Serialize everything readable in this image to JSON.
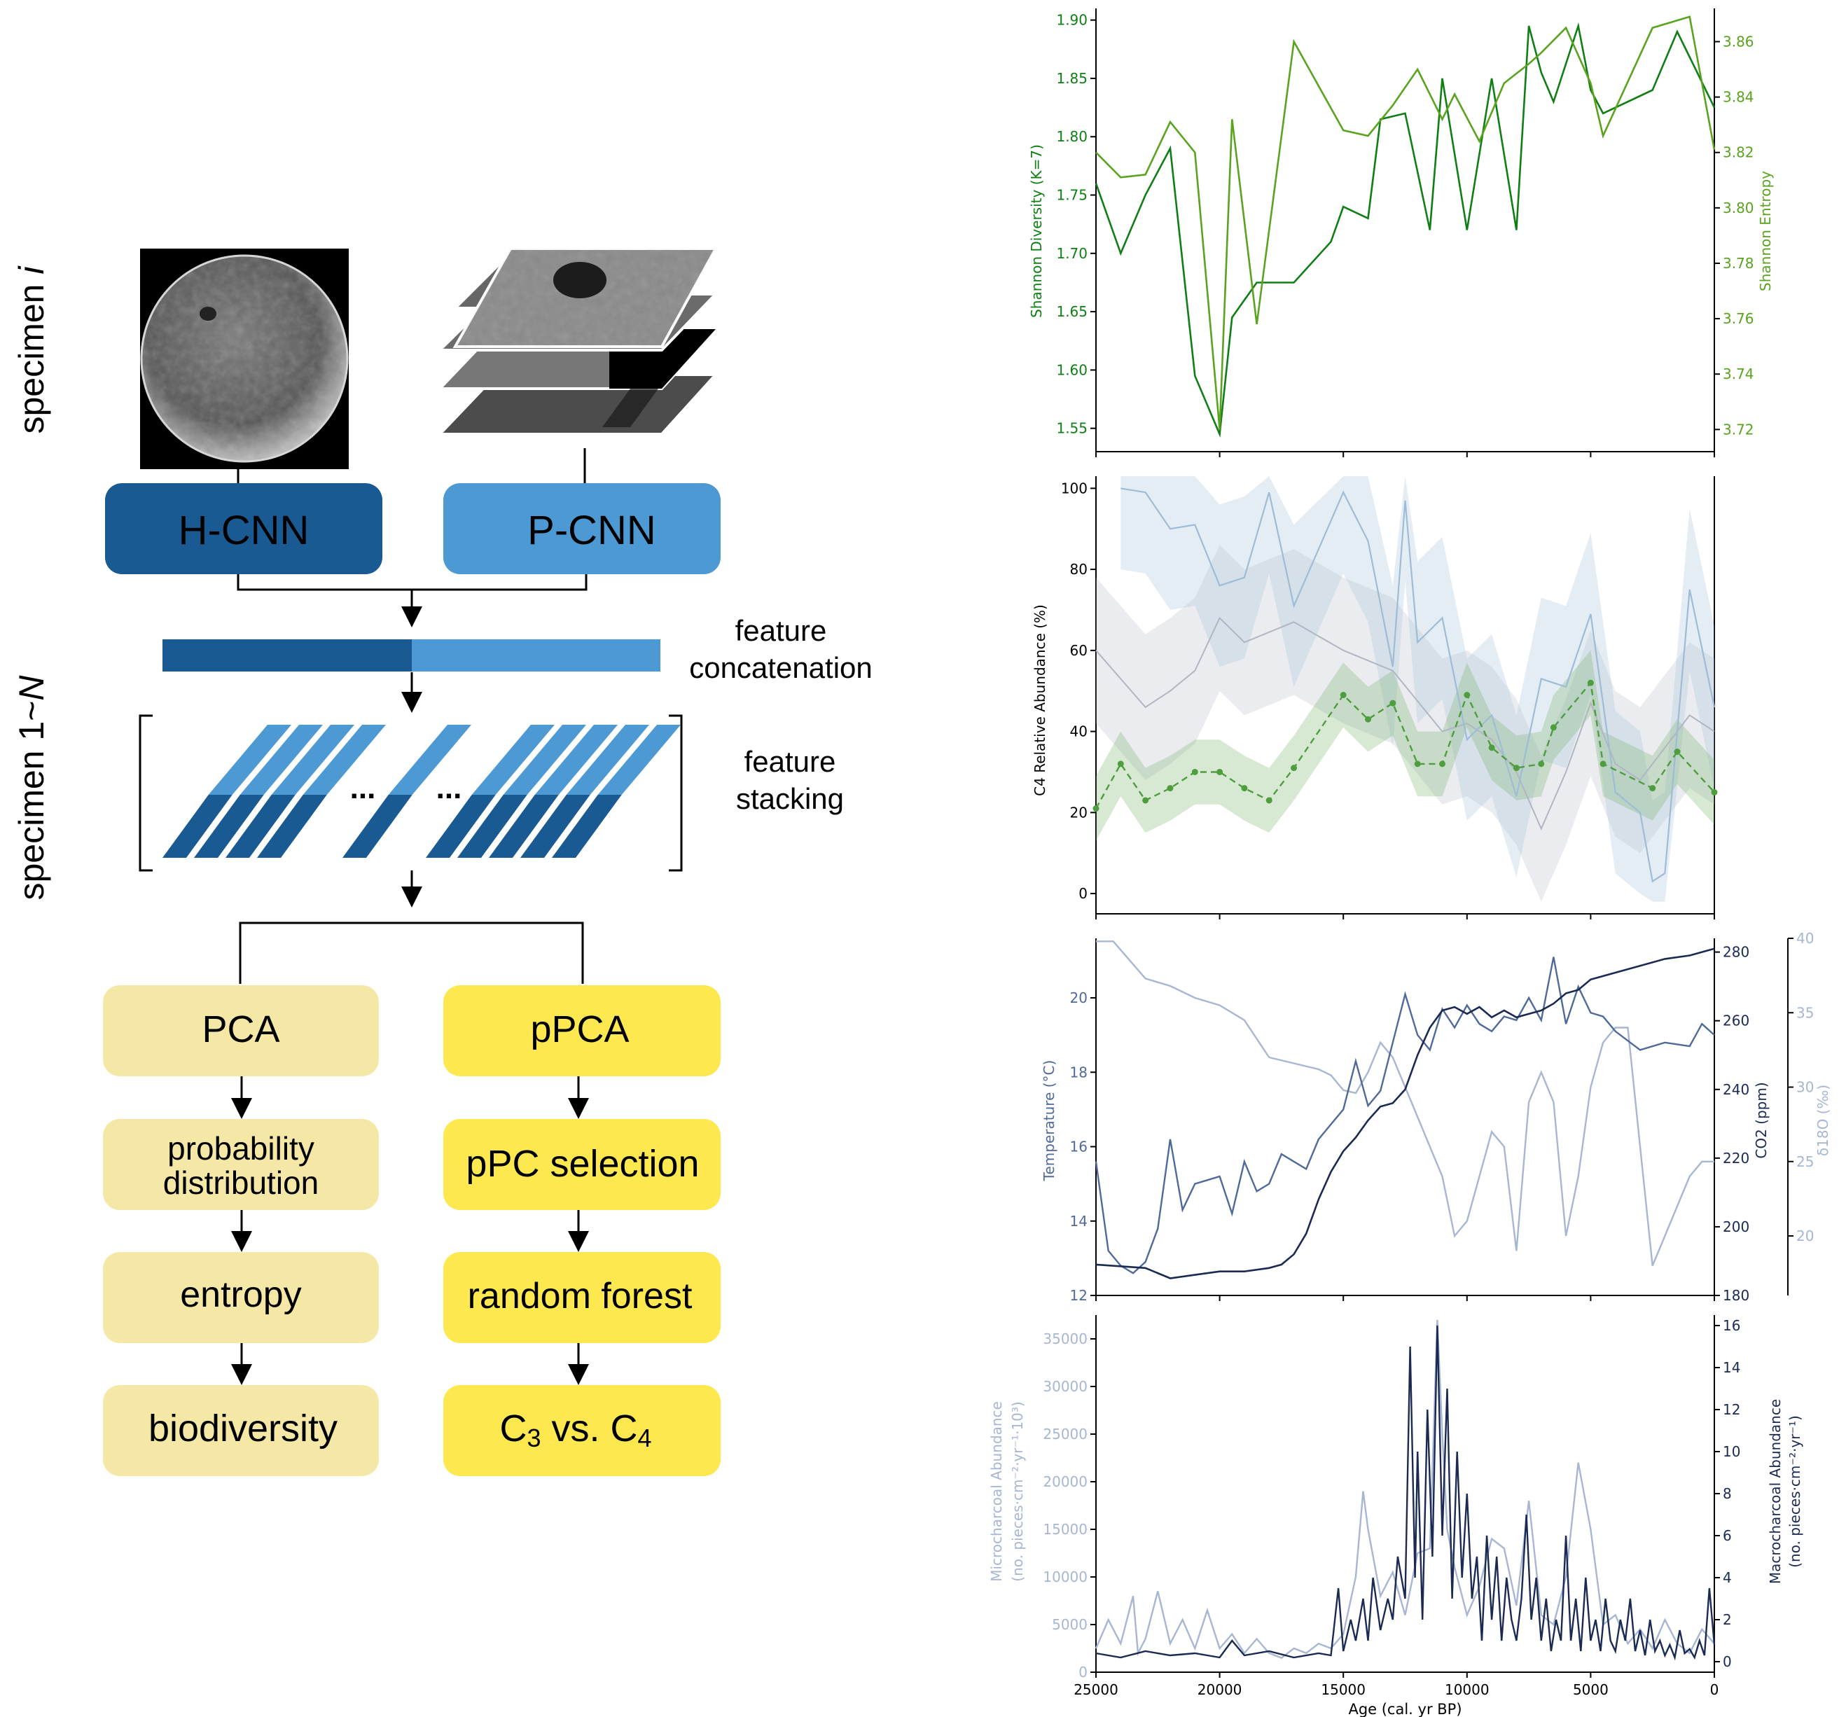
{
  "colors": {
    "hcnn": "#1a5a92",
    "pcnn": "#4d99d3",
    "pca_light": "#f5e8a6",
    "pca_bright": "#fde84f",
    "green_dark": "#0f7f15",
    "green_light": "#5aa31f",
    "navy": "#1a2a52",
    "steel": "#4f6a9a",
    "pale": "#a7b6d2"
  },
  "diagram": {
    "specimen_i_prefix": "specimen ",
    "specimen_i_italic": "i",
    "specimen_n_prefix": "specimen 1~",
    "specimen_n_italic": "N",
    "hcnn": "H-CNN",
    "pcnn": "P-CNN",
    "concat_line1": "feature",
    "concat_line2": "concatenation",
    "stack_line1": "feature",
    "stack_line2": "stacking",
    "ellipsis": "...",
    "left_boxes": [
      {
        "label": "PCA"
      },
      {
        "label": "probability distribution"
      },
      {
        "label": "entropy"
      },
      {
        "label": "biodiversity"
      }
    ],
    "right_boxes": [
      {
        "label": "pPCA"
      },
      {
        "label": "pPC selection"
      },
      {
        "label": "random forest"
      },
      {
        "label": "C3 vs. C4"
      }
    ]
  },
  "chart_data": [
    {
      "type": "line",
      "ylabel": "Shannon Diversity (K=7)",
      "y2label": "Shannon Entropy",
      "xlim": [
        25000,
        0
      ],
      "ylim": [
        1.53,
        1.91
      ],
      "y2lim": [
        3.712,
        3.872
      ],
      "yticks": [
        "1.55",
        "1.60",
        "1.65",
        "1.70",
        "1.75",
        "1.80",
        "1.85",
        "1.90"
      ],
      "y2ticks": [
        "3.72",
        "3.74",
        "3.76",
        "3.78",
        "3.80",
        "3.82",
        "3.84",
        "3.86"
      ],
      "series": [
        {
          "axis": "left",
          "x": [
            25000,
            24000,
            23000,
            22000,
            21000,
            20000,
            19500,
            18500,
            17000,
            15500,
            15000,
            14000,
            13500,
            12500,
            11500,
            11000,
            10000,
            9000,
            8000,
            7500,
            7000,
            6500,
            5500,
            5000,
            4500,
            2500,
            1500,
            0
          ],
          "y": [
            1.76,
            1.7,
            1.75,
            1.79,
            1.595,
            1.545,
            1.645,
            1.675,
            1.675,
            1.71,
            1.74,
            1.73,
            1.815,
            1.82,
            1.72,
            1.85,
            1.72,
            1.85,
            1.72,
            1.895,
            1.855,
            1.83,
            1.895,
            1.84,
            1.82,
            1.84,
            1.89,
            1.825
          ]
        },
        {
          "axis": "right",
          "x": [
            25000,
            24000,
            23000,
            22000,
            21000,
            20000,
            19500,
            18500,
            17000,
            15000,
            14000,
            13000,
            12000,
            11000,
            10500,
            9500,
            8500,
            7500,
            7000,
            6000,
            5000,
            4500,
            2500,
            1000,
            0
          ],
          "y": [
            3.82,
            3.811,
            3.812,
            3.831,
            3.82,
            3.72,
            3.832,
            3.758,
            3.86,
            3.828,
            3.826,
            3.837,
            3.85,
            3.832,
            3.841,
            3.824,
            3.845,
            3.852,
            3.856,
            3.865,
            3.845,
            3.826,
            3.865,
            3.869,
            3.821
          ]
        }
      ]
    },
    {
      "type": "line",
      "ylabel": "C4 Relative Abundance (%)",
      "xlim": [
        25000,
        0
      ],
      "ylim": [
        -5,
        103
      ],
      "yticks": [
        "0",
        "20",
        "40",
        "60",
        "80",
        "100"
      ],
      "series": [
        {
          "style": "dashed-markers",
          "x": [
            25000,
            24000,
            23000,
            22000,
            21000,
            20000,
            19000,
            18000,
            17000,
            15000,
            14000,
            13000,
            12000,
            11000,
            10000,
            9000,
            8000,
            7000,
            6500,
            5000,
            4500,
            2500,
            1500,
            0
          ],
          "y": [
            21,
            32,
            23,
            26,
            30,
            30,
            26,
            23,
            31,
            49,
            43,
            47,
            32,
            32,
            49,
            36,
            31,
            32,
            41,
            52,
            32,
            26,
            35,
            25
          ]
        },
        {
          "style": "plain",
          "x": [
            24000,
            23000,
            22000,
            21000,
            20000,
            19000,
            18000,
            17000,
            15000,
            14000,
            13000,
            12500,
            12000,
            11000,
            10000,
            9000,
            8000,
            7000,
            6000,
            5000,
            4000,
            3000,
            2500,
            2000,
            1000,
            0
          ],
          "y": [
            100,
            99,
            90,
            91,
            76,
            78,
            99,
            71,
            99,
            87,
            56,
            97,
            62,
            68,
            38,
            44,
            24,
            53,
            51,
            69,
            25,
            20,
            3,
            5,
            75,
            46
          ]
        },
        {
          "style": "plain",
          "x": [
            25000,
            23000,
            22000,
            21000,
            20000,
            19000,
            17000,
            15000,
            13000,
            11000,
            10000,
            9000,
            8000,
            7000,
            6000,
            5000,
            4000,
            3000,
            2000,
            1000,
            0
          ],
          "y": [
            60,
            46,
            50,
            55,
            68,
            62,
            67,
            60,
            55,
            40,
            42,
            38,
            30,
            16,
            30,
            47,
            32,
            28,
            36,
            44,
            40
          ]
        }
      ]
    },
    {
      "type": "line",
      "ylabel": "Temperature (°C)",
      "y2label": "CO2 (ppm)",
      "y3label": "δ18O (‰)",
      "xlim": [
        25000,
        0
      ],
      "ylim": [
        12,
        21.6
      ],
      "y2lim": [
        180,
        284
      ],
      "y3lim": [
        16,
        40
      ],
      "yticks": [
        "12",
        "14",
        "16",
        "18",
        "20"
      ],
      "y2ticks": [
        "180",
        "200",
        "220",
        "240",
        "260",
        "280"
      ],
      "y3ticks": [
        "20",
        "25",
        "30",
        "35",
        "40"
      ],
      "series": [
        {
          "name": "temperature",
          "axis": "left",
          "x": [
            25000,
            24500,
            24000,
            23500,
            23000,
            22500,
            22000,
            21500,
            21000,
            20500,
            20000,
            19500,
            19000,
            18500,
            18000,
            17500,
            17000,
            16500,
            16000,
            15500,
            15000,
            14500,
            14000,
            13500,
            13000,
            12500,
            12000,
            11500,
            11000,
            10500,
            10000,
            9500,
            9000,
            8500,
            8000,
            7500,
            7000,
            6500,
            6000,
            5500,
            5000,
            4500,
            4000,
            3000,
            2000,
            1000,
            500,
            0
          ],
          "y": [
            15.6,
            13.2,
            12.8,
            12.6,
            12.9,
            13.8,
            16.2,
            14.3,
            15.0,
            15.1,
            15.2,
            14.2,
            15.6,
            14.8,
            15.0,
            15.8,
            15.6,
            15.4,
            16.2,
            16.6,
            17.0,
            18.3,
            17.1,
            17.5,
            18.8,
            20.1,
            19.0,
            18.6,
            19.7,
            19.2,
            19.8,
            19.3,
            19.1,
            19.5,
            19.4,
            20.0,
            19.4,
            21.1,
            19.3,
            20.3,
            19.6,
            19.5,
            19.1,
            18.6,
            18.8,
            18.7,
            19.3,
            19.0
          ]
        },
        {
          "name": "co2",
          "axis": "right",
          "x": [
            25000,
            23000,
            22000,
            21000,
            20000,
            19000,
            18000,
            17500,
            17000,
            16500,
            16000,
            15500,
            15000,
            14500,
            14000,
            13500,
            13000,
            12500,
            12000,
            11500,
            11000,
            10500,
            10000,
            9500,
            9000,
            8500,
            8000,
            7500,
            7000,
            6500,
            6000,
            5500,
            5000,
            4500,
            4000,
            3000,
            2000,
            1000,
            500,
            0
          ],
          "y": [
            189,
            188,
            185,
            186,
            187,
            187,
            188,
            189,
            192,
            198,
            208,
            216,
            222,
            226,
            231,
            235,
            236,
            240,
            250,
            258,
            263,
            264,
            262,
            264,
            261,
            263,
            261,
            262,
            263,
            265,
            268,
            269,
            272,
            273,
            274,
            276,
            278,
            279,
            280,
            281
          ]
        },
        {
          "name": "d18o",
          "axis": "third",
          "x": [
            25000,
            24300,
            23000,
            22000,
            21000,
            20000,
            19000,
            18000,
            17000,
            16000,
            15500,
            15000,
            14500,
            14000,
            13500,
            13000,
            12500,
            12000,
            11500,
            11000,
            10500,
            10000,
            9500,
            9000,
            8500,
            8000,
            7500,
            7000,
            6500,
            6000,
            5500,
            5000,
            4500,
            4000,
            3500,
            3000,
            2500,
            2000,
            1500,
            1000,
            500,
            0
          ],
          "y": [
            39.8,
            39.8,
            37.3,
            36.8,
            36.0,
            35.5,
            34.5,
            32.0,
            31.6,
            31.2,
            30.8,
            29.8,
            29.6,
            31.0,
            33.0,
            32.0,
            30.0,
            28.0,
            26.0,
            24.0,
            20.0,
            21.0,
            24.0,
            27.0,
            26.0,
            19.0,
            29.0,
            31.0,
            29.0,
            20.0,
            24.0,
            30.0,
            33.0,
            34.0,
            34.0,
            26.0,
            18.0,
            20.0,
            22.0,
            24.0,
            25.0,
            25.0
          ]
        }
      ]
    },
    {
      "type": "line",
      "ylabel": "Microcharcoal Abundance (no. pieces·cm⁻²·yr⁻¹·10³)",
      "y2label": "Macrocharcoal Abundance (no. pieces·cm⁻²·yr⁻¹)",
      "xlabel": "Age (cal. yr BP)",
      "xlim": [
        25000,
        0
      ],
      "xticks": [
        "25000",
        "20000",
        "15000",
        "10000",
        "5000",
        "0"
      ],
      "ylim": [
        0,
        37500
      ],
      "y2lim": [
        -0.5,
        16.5
      ],
      "yticks": [
        "0",
        "5000",
        "10000",
        "15000",
        "20000",
        "25000",
        "30000",
        "35000"
      ],
      "y2ticks": [
        "0",
        "2",
        "4",
        "6",
        "8",
        "10",
        "12",
        "14",
        "16"
      ],
      "series": [
        {
          "name": "microcharcoal",
          "axis": "left",
          "x": [
            25000,
            24500,
            24000,
            23500,
            23300,
            23000,
            22500,
            22000,
            21500,
            21000,
            20500,
            20000,
            19500,
            19000,
            18500,
            18000,
            17500,
            17000,
            16500,
            16000,
            15500,
            15000,
            14500,
            14200,
            14000,
            13500,
            13000,
            12500,
            12000,
            11500,
            11200,
            11000,
            10800,
            10500,
            10000,
            9500,
            9000,
            8500,
            8000,
            7500,
            7000,
            6500,
            6000,
            5500,
            5000,
            4500,
            4000,
            3500,
            3000,
            2500,
            2000,
            1500,
            1000,
            500,
            0
          ],
          "y": [
            2500,
            5500,
            3000,
            8000,
            2000,
            3500,
            8500,
            3000,
            5500,
            2500,
            6500,
            2500,
            4000,
            2000,
            3500,
            2000,
            1500,
            2500,
            2000,
            3000,
            2500,
            4000,
            10000,
            19000,
            15000,
            8000,
            10500,
            6000,
            12500,
            13000,
            37000,
            25000,
            15000,
            11000,
            6000,
            9000,
            14000,
            13000,
            7000,
            18000,
            6000,
            5000,
            10000,
            22000,
            15000,
            5000,
            6000,
            3000,
            4500,
            2500,
            5500,
            3000,
            2000,
            4500,
            3000
          ]
        },
        {
          "name": "macrocharcoal",
          "axis": "right",
          "x": [
            25000,
            24000,
            23000,
            22000,
            21000,
            20000,
            19500,
            19000,
            18000,
            17000,
            16000,
            15500,
            15200,
            15000,
            14700,
            14500,
            14200,
            14000,
            13800,
            13500,
            13200,
            13000,
            12800,
            12500,
            12300,
            12100,
            12000,
            11800,
            11600,
            11400,
            11200,
            11000,
            10800,
            10600,
            10400,
            10200,
            10000,
            9800,
            9600,
            9400,
            9200,
            9000,
            8800,
            8600,
            8400,
            8200,
            8000,
            7800,
            7600,
            7400,
            7200,
            7000,
            6800,
            6600,
            6400,
            6200,
            6000,
            5800,
            5600,
            5400,
            5200,
            5000,
            4800,
            4600,
            4400,
            4200,
            4000,
            3800,
            3600,
            3400,
            3200,
            3000,
            2800,
            2600,
            2400,
            2200,
            2000,
            1800,
            1600,
            1400,
            1200,
            1000,
            800,
            600,
            400,
            200,
            0
          ],
          "y": [
            0.4,
            0.2,
            0.5,
            0.3,
            0.4,
            0.2,
            1.0,
            0.3,
            0.5,
            0.2,
            0.4,
            0.3,
            3.5,
            0.5,
            2.0,
            1.0,
            3.0,
            1.0,
            4.0,
            1.5,
            3.0,
            2.0,
            5.0,
            3.0,
            15.0,
            4.0,
            10.0,
            2.0,
            12.0,
            5.0,
            16.0,
            6.0,
            13.0,
            3.0,
            10.0,
            4.0,
            8.0,
            3.0,
            5.0,
            1.0,
            6.0,
            2.0,
            5.0,
            1.0,
            4.0,
            2.0,
            1.0,
            3.0,
            7.0,
            2.0,
            4.0,
            1.0,
            3.0,
            0.5,
            2.0,
            1.0,
            6.0,
            1.0,
            3.0,
            0.5,
            4.0,
            1.0,
            2.0,
            0.5,
            3.0,
            1.0,
            0.5,
            2.0,
            1.0,
            3.0,
            0.5,
            1.5,
            0.3,
            2.0,
            0.5,
            1.0,
            0.3,
            0.8,
            0.2,
            1.5,
            0.4,
            0.6,
            0.2,
            1.0,
            0.3,
            3.5,
            0.8
          ]
        }
      ]
    }
  ]
}
